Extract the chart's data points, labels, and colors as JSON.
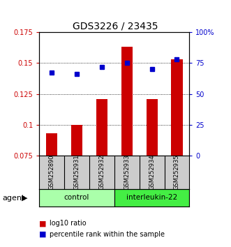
{
  "title": "GDS3226 / 23435",
  "samples": [
    "GSM252890",
    "GSM252931",
    "GSM252932",
    "GSM252933",
    "GSM252934",
    "GSM252935"
  ],
  "log10_ratio": [
    0.093,
    0.1,
    0.121,
    0.163,
    0.121,
    0.153
  ],
  "percentile_rank": [
    67,
    66,
    72,
    75,
    70,
    78
  ],
  "ylim_left": [
    0.075,
    0.175
  ],
  "ylim_right": [
    0,
    100
  ],
  "yticks_left": [
    0.075,
    0.1,
    0.125,
    0.15,
    0.175
  ],
  "yticks_right": [
    0,
    25,
    50,
    75,
    100
  ],
  "ytick_labels_left": [
    "0.075",
    "0.1",
    "0.125",
    "0.15",
    "0.175"
  ],
  "ytick_labels_right": [
    "0",
    "25",
    "50",
    "75",
    "100%"
  ],
  "groups": [
    {
      "label": "control",
      "indices": [
        0,
        1,
        2
      ],
      "color": "#aaffaa"
    },
    {
      "label": "interleukin-22",
      "indices": [
        3,
        4,
        5
      ],
      "color": "#44ee44"
    }
  ],
  "bar_color": "#cc0000",
  "dot_color": "#0000cc",
  "bar_width": 0.45,
  "agent_label": "agent",
  "legend_items": [
    {
      "color": "#cc0000",
      "label": "log10 ratio"
    },
    {
      "color": "#0000cc",
      "label": "percentile rank within the sample"
    }
  ]
}
